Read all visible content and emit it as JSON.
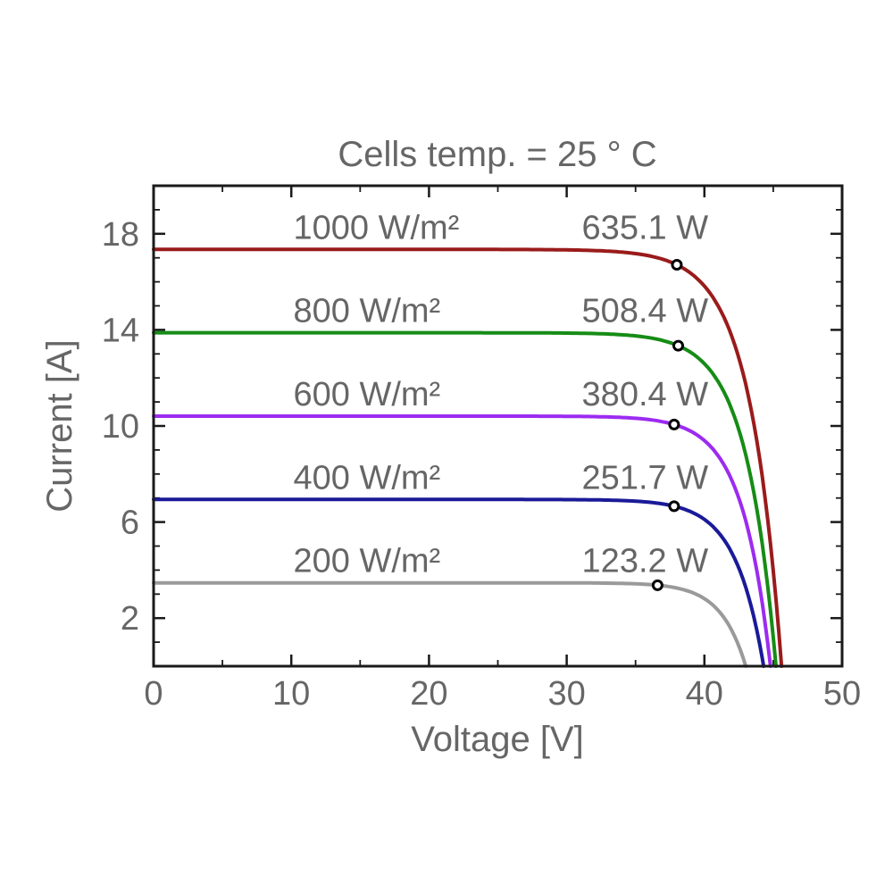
{
  "figure": {
    "background_color": "#ffffff",
    "text_color": "#666666",
    "axis_color": "#1a1a1a"
  },
  "chart_data": {
    "type": "line",
    "title": "Cells temp. = 25 ° C",
    "xlabel": "Voltage [V]",
    "ylabel": "Current [A]",
    "xlim": [
      0,
      50
    ],
    "ylim": [
      0,
      20
    ],
    "x_major_ticks": [
      0,
      10,
      20,
      30,
      40,
      50
    ],
    "x_minor_ticks": [
      5,
      15,
      25,
      35,
      45
    ],
    "y_major_ticks": [
      2,
      6,
      10,
      14,
      18
    ],
    "y_minor_tick_step": 1,
    "grid": false,
    "legend_position": "inline-labels",
    "marker": {
      "shape": "open-circle",
      "fill": "#ffffff",
      "stroke": "#000000"
    },
    "series": [
      {
        "irradiance_label": "1000 W/m²",
        "power_label": "635.1 W",
        "color": "#9a1b1b",
        "isc_A": 17.35,
        "voc_V": 45.6,
        "mpp_V": 38.0,
        "mpp_A": 16.71,
        "mpp_W": 635.1
      },
      {
        "irradiance_label": "800 W/m²",
        "power_label": "508.4 W",
        "color": "#168c16",
        "isc_A": 13.88,
        "voc_V": 45.2,
        "mpp_V": 38.1,
        "mpp_A": 13.34,
        "mpp_W": 508.4
      },
      {
        "irradiance_label": "600 W/m²",
        "power_label": "380.4 W",
        "color": "#9c2bf0",
        "isc_A": 10.41,
        "voc_V": 44.8,
        "mpp_V": 37.8,
        "mpp_A": 10.06,
        "mpp_W": 380.4
      },
      {
        "irradiance_label": "400 W/m²",
        "power_label": "251.7 W",
        "color": "#1a1a99",
        "isc_A": 6.94,
        "voc_V": 44.3,
        "mpp_V": 37.8,
        "mpp_A": 6.66,
        "mpp_W": 251.7
      },
      {
        "irradiance_label": "200 W/m²",
        "power_label": "123.2 W",
        "color": "#9a9a9a",
        "isc_A": 3.47,
        "voc_V": 43.0,
        "mpp_V": 36.6,
        "mpp_A": 3.37,
        "mpp_W": 123.2
      }
    ]
  }
}
